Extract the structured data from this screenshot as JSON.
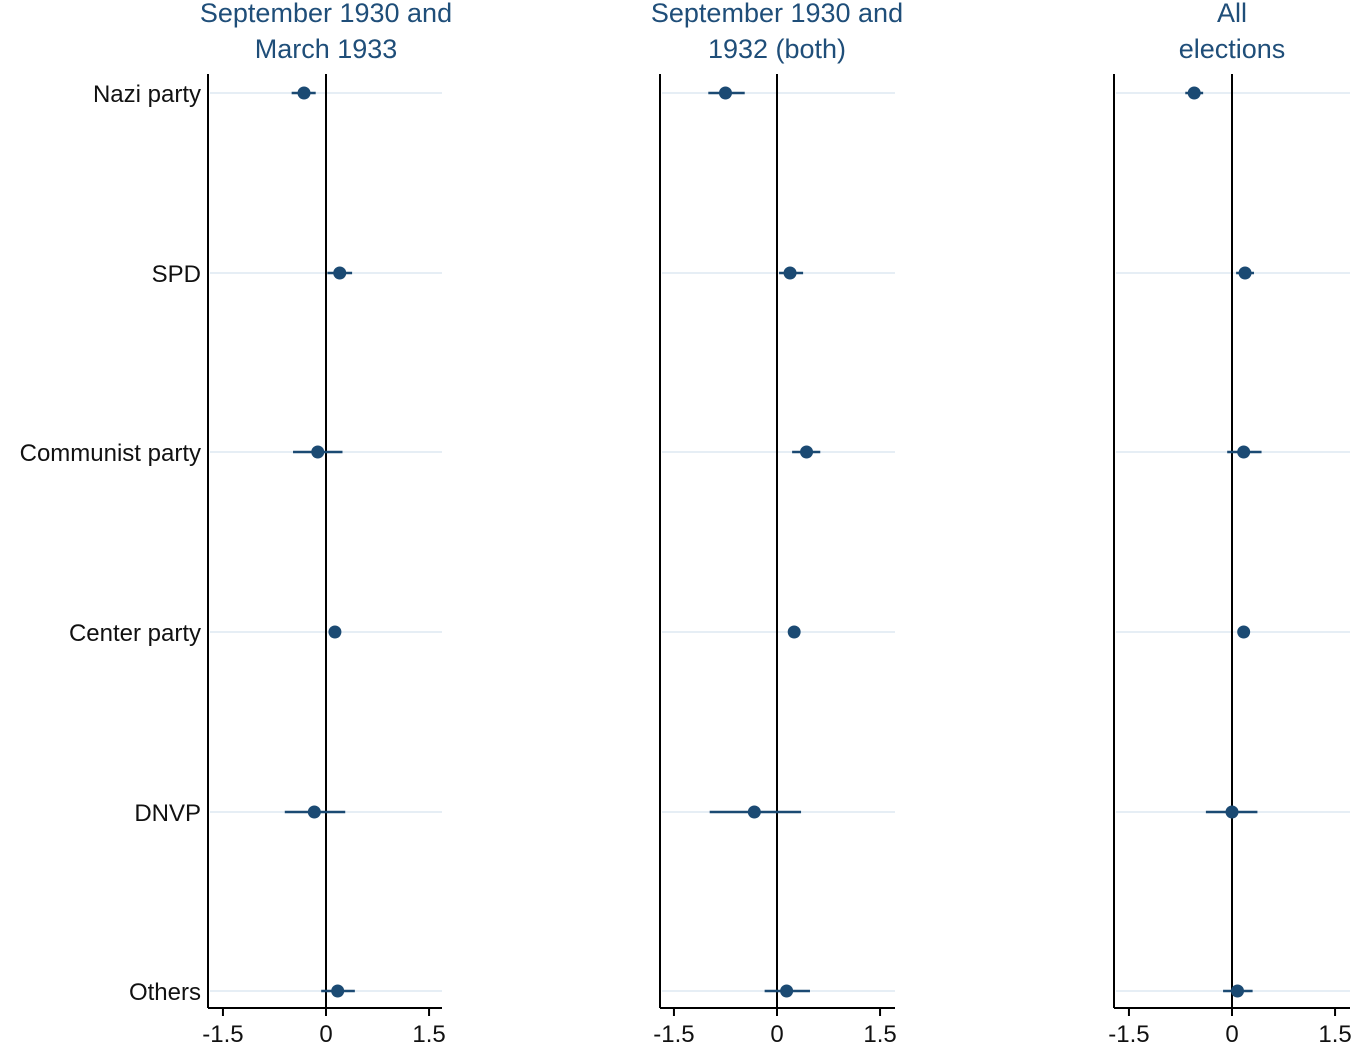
{
  "chart_data": {
    "type": "scatter",
    "subtype": "coefficient-plot-with-confidence-intervals",
    "grid": false,
    "categories": [
      "Nazi party",
      "SPD",
      "Communist party",
      "Center party",
      "DNVP",
      "Others"
    ],
    "xlim": [
      -1.7,
      1.7
    ],
    "xticks": [
      -1.5,
      0,
      1.5
    ],
    "xtick_labels": [
      "-1.5",
      "0",
      "1.5"
    ],
    "colors": {
      "marker": "#1b4a73",
      "title": "#1f4e79",
      "axis": "#000000",
      "row_line": "#e6eef5"
    },
    "panels": [
      {
        "title_lines": [
          "September 1930 and",
          "March 1933"
        ],
        "series": [
          {
            "category": "Nazi party",
            "estimate": -0.32,
            "ci": [
              -0.5,
              -0.15
            ]
          },
          {
            "category": "SPD",
            "estimate": 0.2,
            "ci": [
              0.02,
              0.38
            ]
          },
          {
            "category": "Communist party",
            "estimate": -0.12,
            "ci": [
              -0.48,
              0.24
            ]
          },
          {
            "category": "Center party",
            "estimate": 0.13,
            "ci": [
              0.1,
              0.16
            ]
          },
          {
            "category": "DNVP",
            "estimate": -0.17,
            "ci": [
              -0.6,
              0.28
            ]
          },
          {
            "category": "Others",
            "estimate": 0.17,
            "ci": [
              -0.07,
              0.42
            ]
          }
        ]
      },
      {
        "title_lines": [
          "September 1930 and",
          "1932 (both)"
        ],
        "series": [
          {
            "category": "Nazi party",
            "estimate": -0.75,
            "ci": [
              -1.0,
              -0.47
            ]
          },
          {
            "category": "SPD",
            "estimate": 0.19,
            "ci": [
              0.03,
              0.38
            ]
          },
          {
            "category": "Communist party",
            "estimate": 0.43,
            "ci": [
              0.22,
              0.63
            ]
          },
          {
            "category": "Center party",
            "estimate": 0.25,
            "ci": [
              0.22,
              0.28
            ]
          },
          {
            "category": "DNVP",
            "estimate": -0.33,
            "ci": [
              -0.98,
              0.35
            ]
          },
          {
            "category": "Others",
            "estimate": 0.14,
            "ci": [
              -0.18,
              0.48
            ]
          }
        ]
      },
      {
        "title_lines": [
          "All",
          "elections"
        ],
        "series": [
          {
            "category": "Nazi party",
            "estimate": -0.55,
            "ci": [
              -0.68,
              -0.42
            ]
          },
          {
            "category": "SPD",
            "estimate": 0.19,
            "ci": [
              0.06,
              0.32
            ]
          },
          {
            "category": "Communist party",
            "estimate": 0.17,
            "ci": [
              -0.07,
              0.43
            ]
          },
          {
            "category": "Center party",
            "estimate": 0.17,
            "ci": [
              0.14,
              0.2
            ]
          },
          {
            "category": "DNVP",
            "estimate": 0.0,
            "ci": [
              -0.38,
              0.37
            ]
          },
          {
            "category": "Others",
            "estimate": 0.08,
            "ci": [
              -0.13,
              0.3
            ]
          }
        ]
      }
    ]
  }
}
